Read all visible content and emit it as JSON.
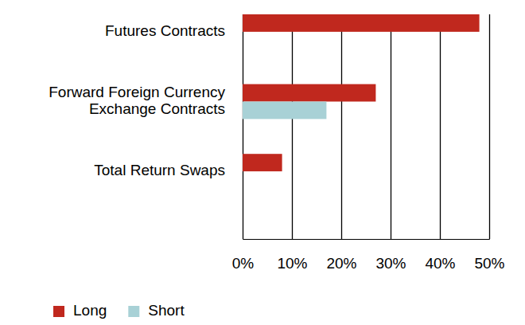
{
  "chart_data": {
    "type": "bar",
    "orientation": "horizontal",
    "categories": [
      "Futures Contracts",
      "Forward Foreign Currency\nExchange Contracts",
      "Total Return Swaps"
    ],
    "series": [
      {
        "name": "Long",
        "color": "#c0281e",
        "values": [
          48,
          27,
          8
        ]
      },
      {
        "name": "Short",
        "color": "#a8d1d6",
        "values": [
          null,
          17,
          null
        ]
      }
    ],
    "xlim": [
      0,
      50
    ],
    "xticks": [
      {
        "value": 0,
        "label": "0%"
      },
      {
        "value": 10,
        "label": "10%"
      },
      {
        "value": 20,
        "label": "20%"
      },
      {
        "value": 30,
        "label": "30%"
      },
      {
        "value": 40,
        "label": "40%"
      },
      {
        "value": 50,
        "label": "50%"
      }
    ],
    "grid": true,
    "legend": "bottom-left"
  }
}
